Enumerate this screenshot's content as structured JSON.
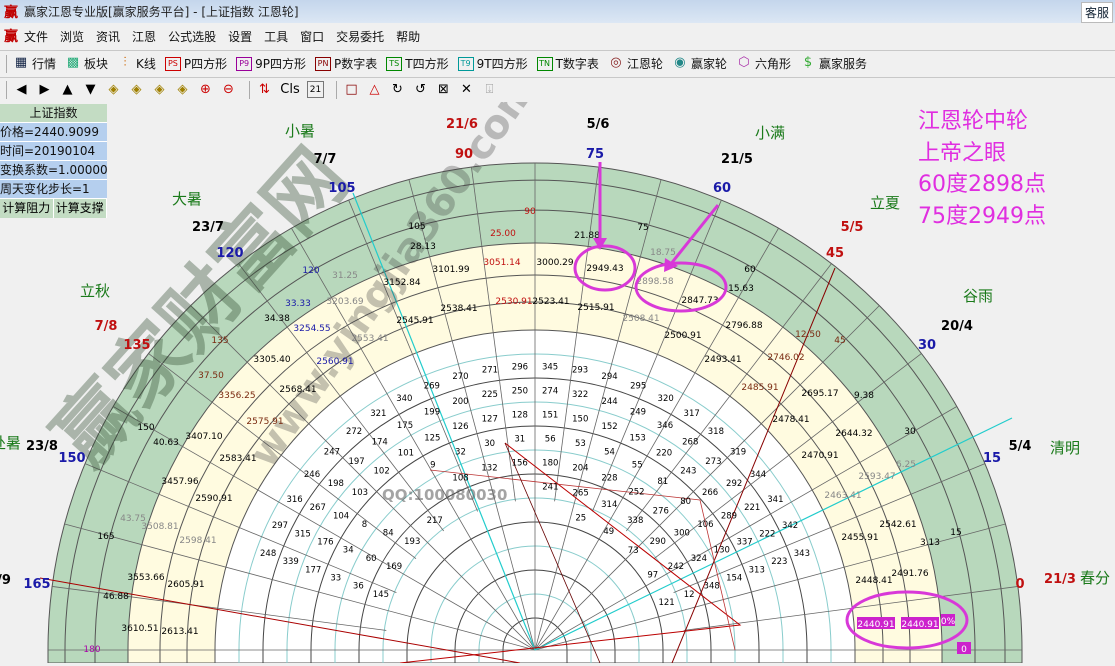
{
  "window": {
    "title": "赢家江恩专业版[赢家服务平台] - [上证指数 江恩轮]",
    "logo": "赢",
    "service_button": "客服"
  },
  "menu": [
    "文件",
    "浏览",
    "资讯",
    "江恩",
    "公式选股",
    "设置",
    "工具",
    "窗口",
    "交易委托",
    "帮助"
  ],
  "toolbar1": [
    {
      "label": "行情",
      "icon": "grid-icon"
    },
    {
      "label": "板块",
      "icon": "blocks-icon"
    },
    {
      "label": "K线",
      "icon": "candlestick-icon"
    },
    {
      "label": "P四方形",
      "icon": "PS"
    },
    {
      "label": "9P四方形",
      "icon": "P9"
    },
    {
      "label": "P数字表",
      "icon": "PN"
    },
    {
      "label": "T四方形",
      "icon": "TS"
    },
    {
      "label": "9T四方形",
      "icon": "T9"
    },
    {
      "label": "T数字表",
      "icon": "TN"
    },
    {
      "label": "江恩轮",
      "icon": "wheel-icon"
    },
    {
      "label": "赢家轮",
      "icon": "big-wheel-icon"
    },
    {
      "label": "六角形",
      "icon": "hexagon-icon"
    },
    {
      "label": "赢家服务",
      "icon": "dollar-icon"
    }
  ],
  "toolbar2": {
    "cls": "Cls",
    "calendar": "21"
  },
  "left_panel": {
    "title": "上证指数",
    "price": "价格=2440.9099",
    "time": "时间=20190104",
    "coef": "变换系数=1.000000",
    "step": "周天变化步长=1",
    "btn_resist": "计算阻力",
    "btn_support": "计算支撑"
  },
  "annotation": [
    "江恩轮中轮",
    "上帝之眼",
    "60度2898点",
    "75度2949点"
  ],
  "watermark": {
    "qq": "QQ:100080030",
    "site": "www.yingjia360.com",
    "brand": "赢家财富网"
  },
  "colors": {
    "green_ring": "#b8d8bc",
    "yellow_ring": "#fffbe0",
    "annotation": "#e02ee0",
    "highlight": "#cc22cc"
  },
  "outer_labels": [
    "小暑",
    "21/6",
    "5/6",
    "小满",
    "7/7",
    "90",
    "75",
    "21/5",
    "105",
    "60",
    "大暑",
    "立夏",
    "23/7",
    "5/5",
    "120",
    "45",
    "立秋",
    "谷雨",
    "7/8",
    "20/4",
    "135",
    "30",
    "处暑",
    "23/8",
    "5/4",
    "清明",
    "150",
    "15",
    "/9",
    "165",
    "0",
    "21/3",
    "春分"
  ],
  "ring_values": [
    "90",
    "105",
    "75",
    "25.00",
    "21.88",
    "28.13",
    "18.75",
    "60",
    "15.63",
    "120",
    "31.25",
    "33.33",
    "34.38",
    "135",
    "12.50",
    "45",
    "37.50",
    "9.38",
    "150",
    "40.63",
    "30",
    "6.25",
    "43.75",
    "165",
    "3.13",
    "15",
    "46.88",
    "180"
  ],
  "price_values": [
    "3101.99",
    "3051.14",
    "3000.29",
    "2949.43",
    "2898.58",
    "2847.73",
    "3152.84",
    "3203.69",
    "3254.55",
    "2538.41",
    "2530.91",
    "2523.41",
    "2515.91",
    "2508.41",
    "2545.91",
    "2553.41",
    "2500.91",
    "2796.88",
    "2746.02",
    "3305.40",
    "2560.91",
    "2568.41",
    "2493.41",
    "2485.91",
    "3356.25",
    "2575.91",
    "2695.17",
    "2478.41",
    "3407.10",
    "2583.41",
    "2644.32",
    "2470.91",
    "3457.96",
    "2590.91",
    "2463.41",
    "2593.47",
    "3508.81",
    "2598.41",
    "2542.61",
    "2455.91",
    "3553.66",
    "2605.91",
    "2491.76",
    "2448.41",
    "3610.51",
    "2613.41"
  ],
  "highlighted": [
    "2440.91",
    "2440.91",
    "0%",
    "0"
  ],
  "inner_values": [
    "343",
    "342",
    "341",
    "344",
    "319",
    "318",
    "317",
    "320",
    "295",
    "294",
    "293",
    "345",
    "296",
    "271",
    "270",
    "269",
    "340",
    "321",
    "272",
    "247",
    "246",
    "316",
    "297",
    "248",
    "223",
    "222",
    "221",
    "292",
    "273",
    "268",
    "346",
    "249",
    "244",
    "322",
    "274",
    "250",
    "225",
    "200",
    "199",
    "175",
    "174",
    "197",
    "198",
    "267",
    "315",
    "339",
    "313",
    "337",
    "289",
    "266",
    "243",
    "220",
    "153",
    "152",
    "150",
    "151",
    "128",
    "127",
    "126",
    "125",
    "101",
    "102",
    "103",
    "104",
    "176",
    "177",
    "154",
    "130",
    "106",
    "80",
    "81",
    "55",
    "54",
    "53",
    "56",
    "31",
    "30",
    "32",
    "9",
    "8",
    "34",
    "33",
    "348",
    "324",
    "300",
    "276",
    "252",
    "228",
    "204",
    "180",
    "156",
    "132",
    "108",
    "84",
    "60",
    "36",
    "12",
    "242",
    "290",
    "338",
    "314",
    "265",
    "241",
    "217",
    "193",
    "169",
    "145",
    "121",
    "97",
    "73",
    "49",
    "25"
  ]
}
